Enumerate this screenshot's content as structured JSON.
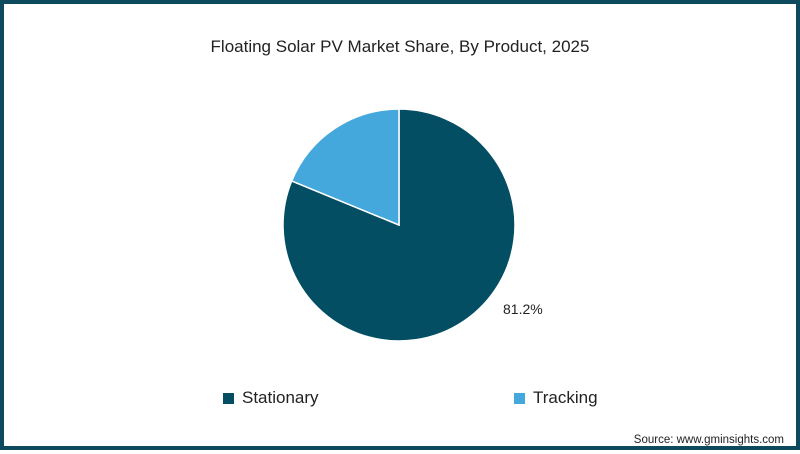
{
  "chart_data": {
    "type": "pie",
    "title": "Floating Solar PV Market Share, By Product, 2025",
    "categories": [
      "Stationary",
      "Tracking"
    ],
    "values": [
      81.2,
      18.8
    ],
    "colors": [
      "#034e62",
      "#44a8dc"
    ],
    "data_labels": [
      "81.2%",
      ""
    ],
    "legend_position": "bottom"
  },
  "title": "Floating Solar PV Market Share, By Product, 2025",
  "label_stationary": "81.2%",
  "legend": [
    {
      "label": "Stationary",
      "color": "#034e62"
    },
    {
      "label": "Tracking",
      "color": "#44a8dc"
    }
  ],
  "source": "Source: www.gminsights.com"
}
